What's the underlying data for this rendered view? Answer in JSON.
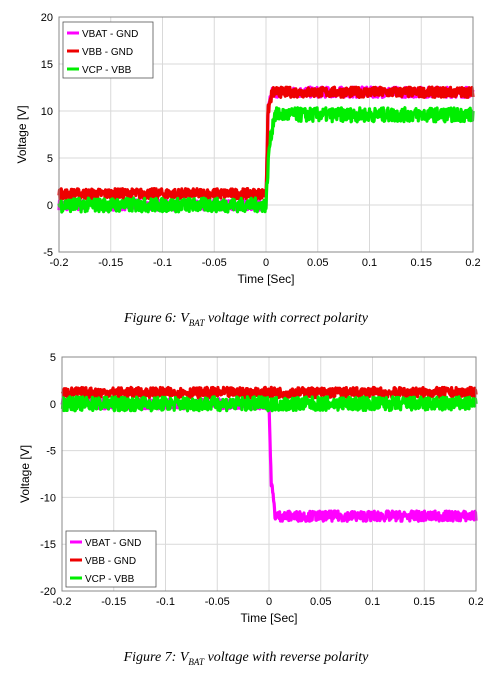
{
  "chart_data": [
    {
      "type": "line",
      "xlabel": "Time [Sec]",
      "ylabel": "Voltage [V]",
      "xlim": [
        -0.2,
        0.2
      ],
      "ylim": [
        -5,
        20
      ],
      "xticks": [
        "-0.2",
        "-0.15",
        "-0.1",
        "-0.05",
        "0",
        "0.05",
        "0.1",
        "0.15",
        "0.2"
      ],
      "yticks": [
        "20",
        "15",
        "10",
        "5",
        "0",
        "-5"
      ],
      "grid": true,
      "legend_position": "top-left",
      "series": [
        {
          "name": "VBAT - GND",
          "color": "#ff00ff",
          "x": [
            -0.2,
            0,
            0.002,
            0.006,
            0.2
          ],
          "y": [
            0,
            0,
            10,
            12,
            12
          ]
        },
        {
          "name": "VBB - GND",
          "color": "#ee0000",
          "x": [
            -0.2,
            0,
            0.002,
            0.006,
            0.2
          ],
          "y": [
            1.2,
            1.2,
            10,
            12,
            12
          ]
        },
        {
          "name": "VCP - VBB",
          "color": "#00ee00",
          "x": [
            -0.2,
            0,
            0.003,
            0.008,
            0.2
          ],
          "y": [
            0,
            0,
            6,
            9.6,
            9.6
          ]
        }
      ],
      "caption": {
        "prefix": "Figure 6: ",
        "v": "V",
        "sub": "BAT",
        "rest": " voltage with correct polarity"
      }
    },
    {
      "type": "line",
      "xlabel": "Time [Sec]",
      "ylabel": "Voltage [V]",
      "xlim": [
        -0.2,
        0.2
      ],
      "ylim": [
        -20,
        5
      ],
      "xticks": [
        "-0.2",
        "-0.15",
        "-0.1",
        "-0.05",
        "0",
        "0.05",
        "0.1",
        "0.15",
        "0.2"
      ],
      "yticks": [
        "5",
        "0",
        "-5",
        "-10",
        "-15",
        "-20"
      ],
      "grid": true,
      "legend_position": "bottom-left",
      "series": [
        {
          "name": "VBAT - GND",
          "color": "#ff00ff",
          "x": [
            -0.2,
            0,
            0.002,
            0.006,
            0.2
          ],
          "y": [
            0,
            0,
            -8,
            -12,
            -12
          ]
        },
        {
          "name": "VBB - GND",
          "color": "#ee0000",
          "x": [
            -0.2,
            0.2
          ],
          "y": [
            1.2,
            1.2
          ]
        },
        {
          "name": "VCP - VBB",
          "color": "#00ee00",
          "x": [
            -0.2,
            0.2
          ],
          "y": [
            0,
            0
          ]
        }
      ],
      "caption": {
        "prefix": "Figure 7: ",
        "v": "V",
        "sub": "BAT",
        "rest": " voltage with reverse polarity"
      }
    }
  ]
}
